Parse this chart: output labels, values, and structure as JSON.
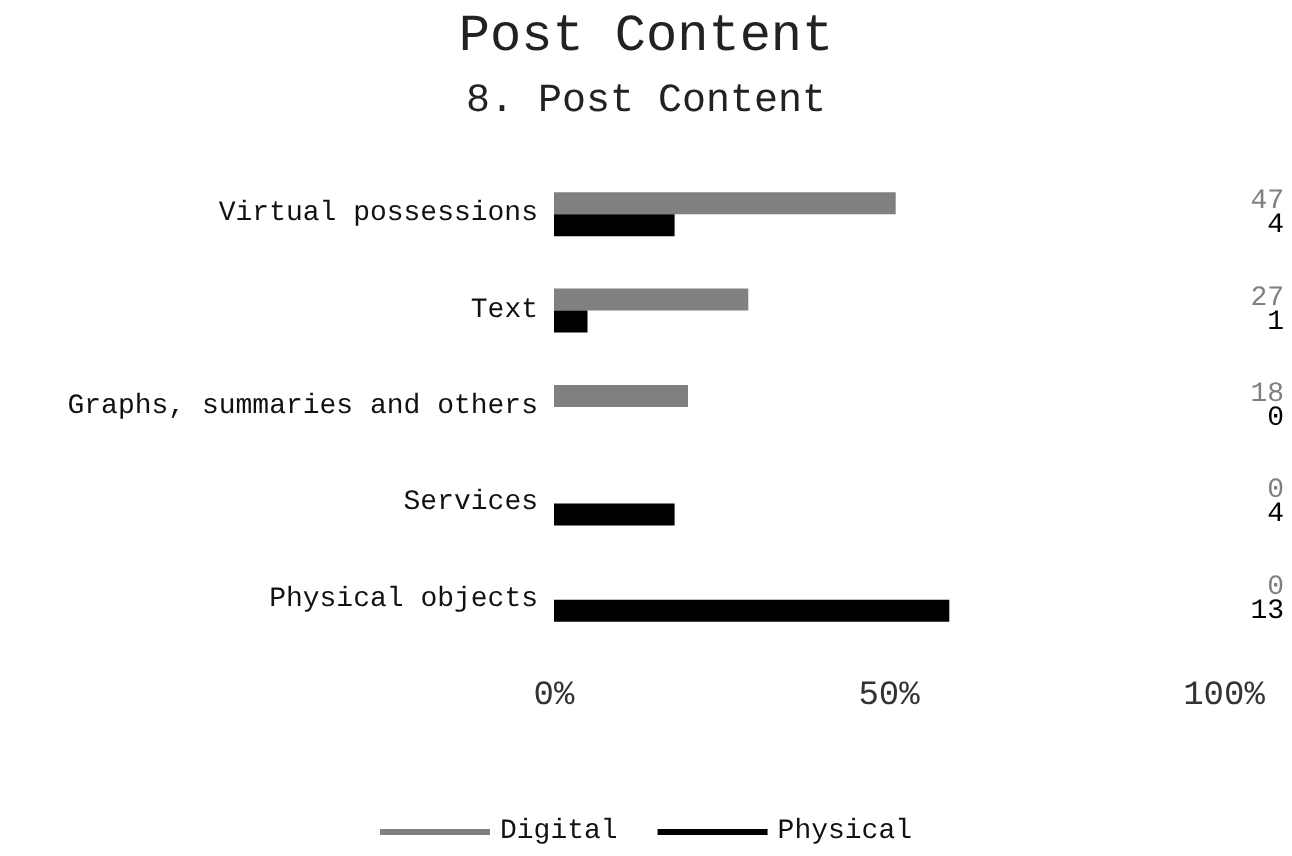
{
  "chart_data": {
    "type": "bar",
    "orientation": "horizontal",
    "title": "Post Content",
    "subtitle": "8. Post Content",
    "categories": [
      "Virtual possessions",
      "Text",
      "Graphs, summaries and others",
      "Services",
      "Physical objects"
    ],
    "series": [
      {
        "name": "Digital",
        "color": "#808080",
        "values": [
          51,
          29,
          20,
          0,
          0
        ]
      },
      {
        "name": "Physical",
        "color": "#000000",
        "values": [
          18,
          5,
          0,
          18,
          59
        ]
      }
    ],
    "annotations": [
      "47",
      "4",
      "27",
      "1",
      "18",
      "0",
      "0",
      "4",
      "0",
      "13"
    ],
    "xlim": [
      0,
      100
    ],
    "xticks": [
      {
        "value": 0,
        "label": "0%"
      },
      {
        "value": 50,
        "label": "50%"
      },
      {
        "value": 100,
        "label": "100%"
      }
    ],
    "grid": false,
    "legend": "bottom"
  }
}
